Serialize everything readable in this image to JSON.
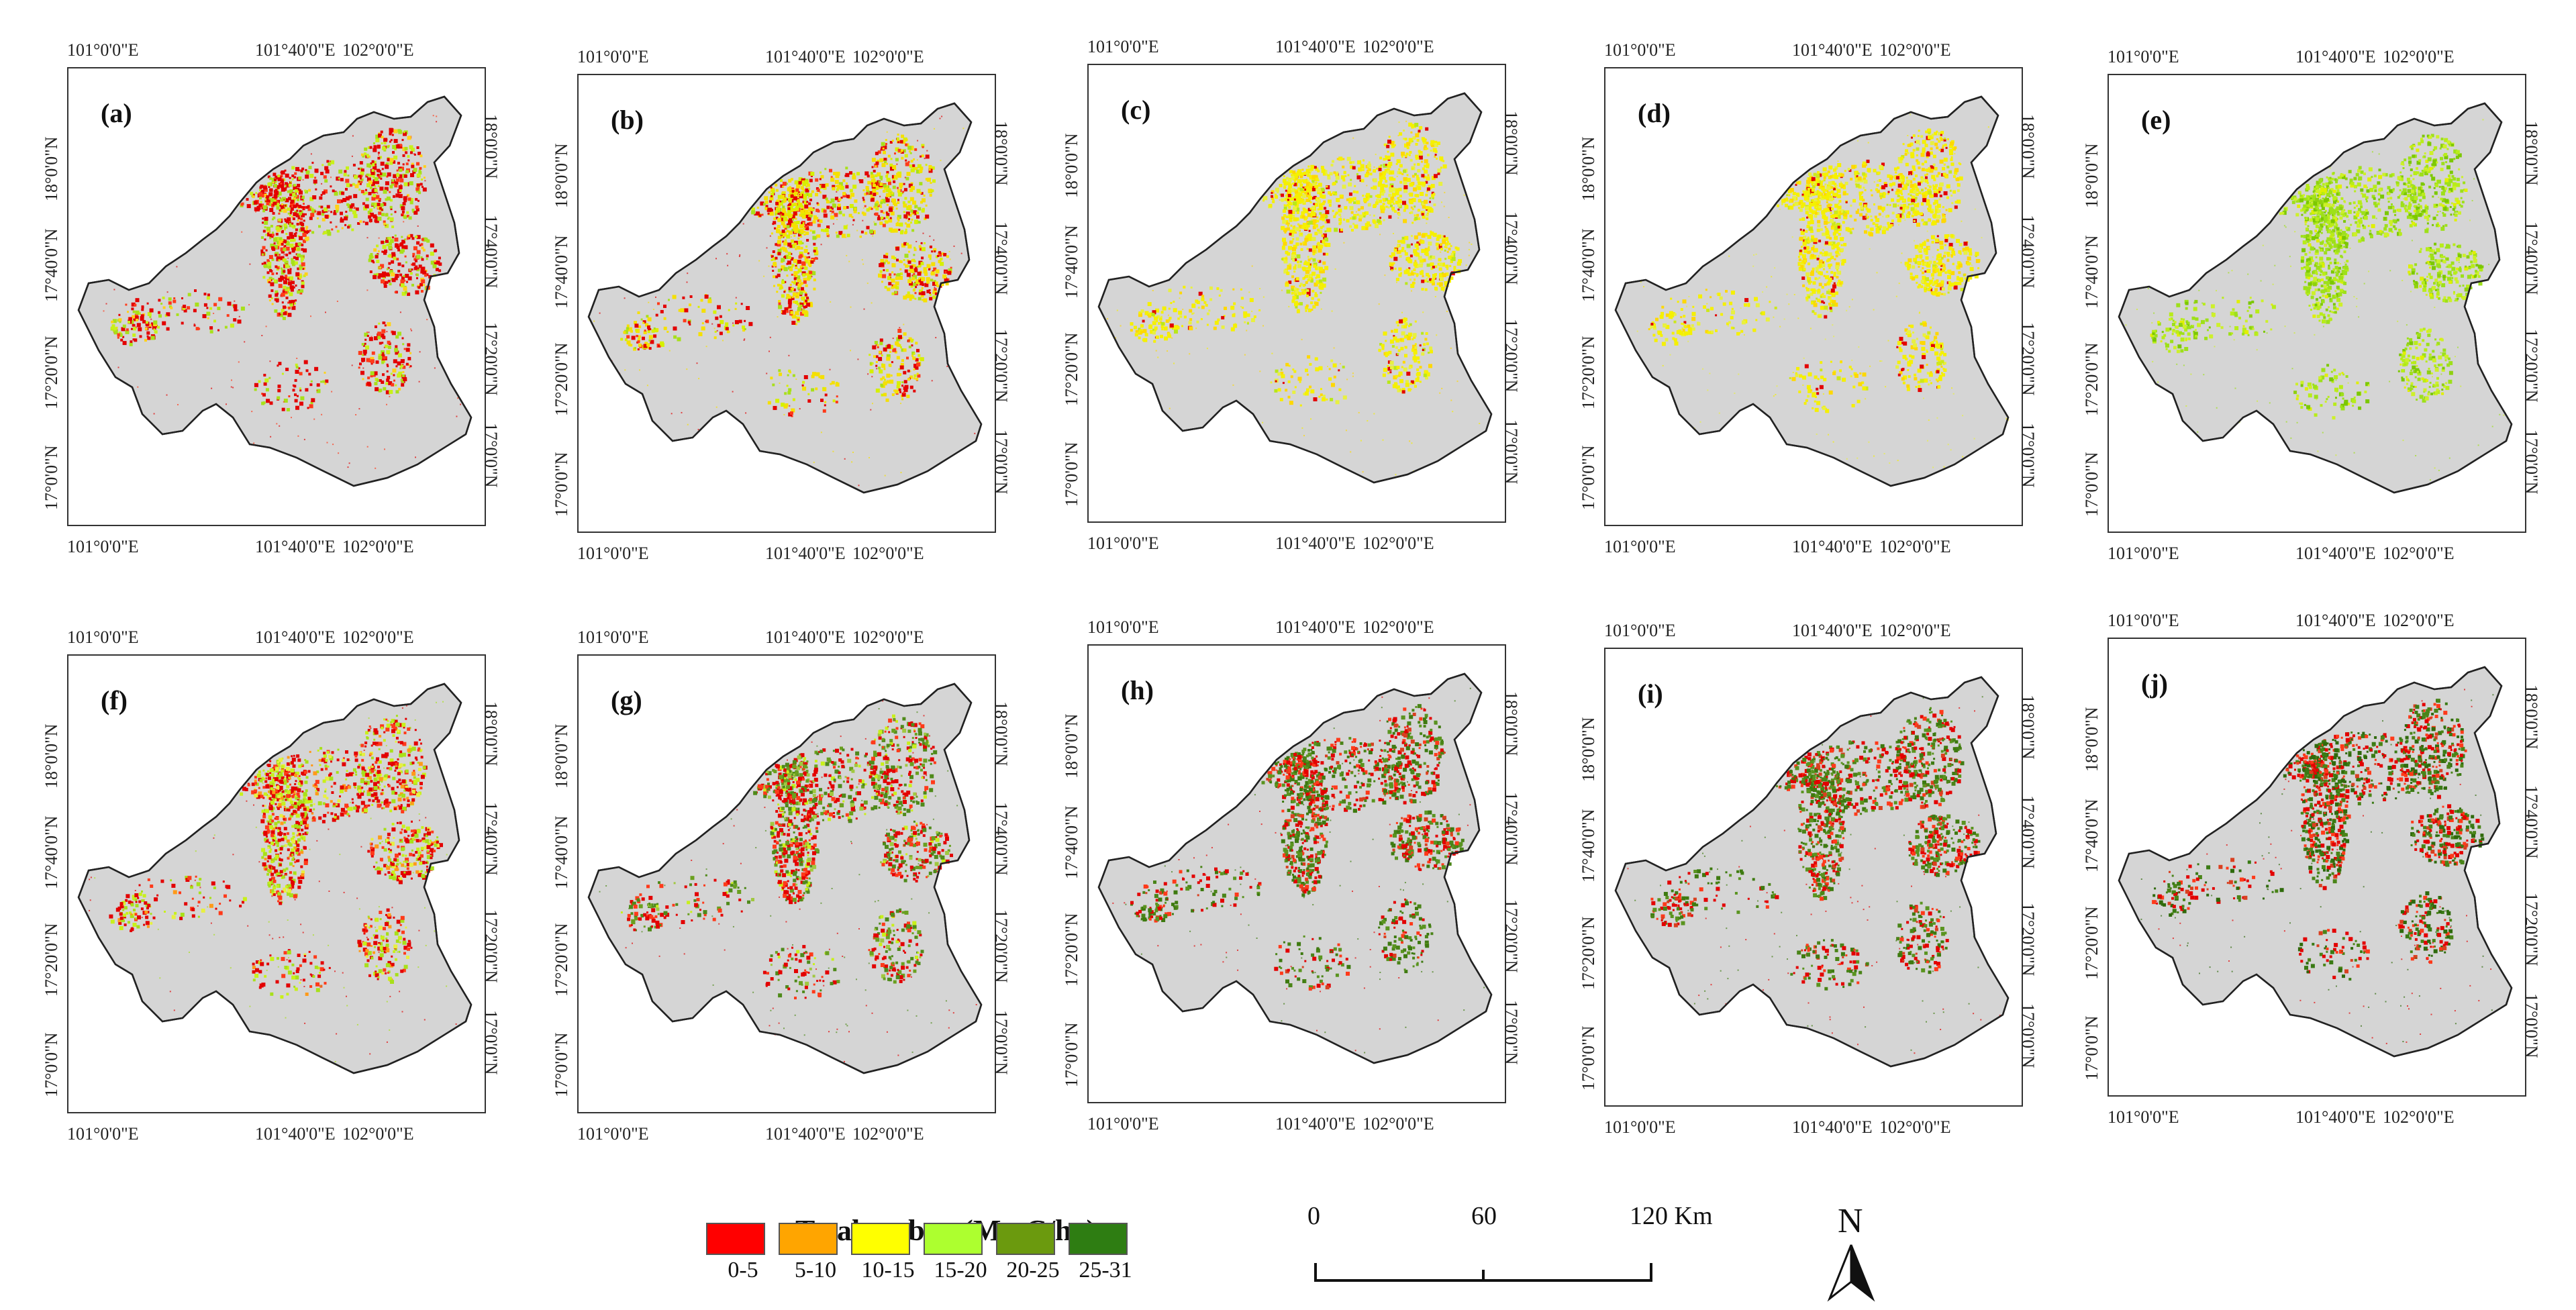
{
  "panels": [
    {
      "id": "a",
      "label": "(a)",
      "colors": [
        "#e30000",
        "#e30000",
        "#ff3a1a",
        "#a8e01a",
        "#c8f01a",
        "#ffd21a"
      ],
      "weights": [
        5,
        3,
        2,
        3,
        2,
        1
      ]
    },
    {
      "id": "b",
      "label": "(b)",
      "colors": [
        "#e30000",
        "#f5e000",
        "#f5e000",
        "#d6f000",
        "#ff3a1a",
        "#a8e01a"
      ],
      "weights": [
        3,
        3,
        2,
        2,
        1,
        1
      ]
    },
    {
      "id": "c",
      "label": "(c)",
      "colors": [
        "#f5f000",
        "#f5f000",
        "#ffd800",
        "#e8f040",
        "#e30000",
        "#b9e81a"
      ],
      "weights": [
        5,
        3,
        2,
        2,
        1,
        1
      ]
    },
    {
      "id": "d",
      "label": "(d)",
      "colors": [
        "#f5f000",
        "#f5f000",
        "#e8f040",
        "#ffd800",
        "#cde81a",
        "#e30000"
      ],
      "weights": [
        5,
        3,
        2,
        2,
        1,
        1
      ]
    },
    {
      "id": "e",
      "label": "(e)",
      "colors": [
        "#9ee01a",
        "#b8ec1a",
        "#cdf02a",
        "#7cc800",
        "#e0f000",
        "#8fd010"
      ],
      "weights": [
        4,
        3,
        2,
        2,
        1,
        1
      ]
    },
    {
      "id": "f",
      "label": "(f)",
      "colors": [
        "#e30000",
        "#ff3a1a",
        "#a8e01a",
        "#c8f01a",
        "#e8f040",
        "#ff9a1a"
      ],
      "weights": [
        5,
        2,
        3,
        2,
        1,
        1
      ]
    },
    {
      "id": "g",
      "label": "(g)",
      "colors": [
        "#e30000",
        "#ff3a1a",
        "#4f8a1a",
        "#6aa020",
        "#c8f01a",
        "#a0c840"
      ],
      "weights": [
        5,
        2,
        3,
        2,
        1,
        1
      ]
    },
    {
      "id": "h",
      "label": "(h)",
      "colors": [
        "#e30000",
        "#ff3a1a",
        "#3e7a10",
        "#5a9420",
        "#4a8418",
        "#d94020"
      ],
      "weights": [
        4,
        2,
        3,
        3,
        2,
        1
      ]
    },
    {
      "id": "i",
      "label": "(i)",
      "colors": [
        "#e30000",
        "#ff3a1a",
        "#3e7a10",
        "#5a9420",
        "#4a8418",
        "#d94020"
      ],
      "weights": [
        4,
        2,
        3,
        3,
        2,
        1
      ]
    },
    {
      "id": "j",
      "label": "(j)",
      "colors": [
        "#e30000",
        "#ff3a1a",
        "#2f6a0c",
        "#4a8418",
        "#3a7a14",
        "#d94020"
      ],
      "weights": [
        4,
        2,
        3,
        3,
        2,
        1
      ]
    }
  ],
  "axes": {
    "lon_labels": [
      "101°0'0\"E",
      "101°40'0\"E",
      "102°0'0\"E"
    ],
    "lat_labels": [
      "18°0'0\"N",
      "17°40'0\"N",
      "17°20'0\"N",
      "17°0'0\"N"
    ]
  },
  "legend": {
    "title": "Total carbon (Mg·C/ha)",
    "items": [
      {
        "label": "0-5",
        "color": "#ff0000"
      },
      {
        "label": "5-10",
        "color": "#ffa500"
      },
      {
        "label": "10-15",
        "color": "#ffff00"
      },
      {
        "label": "15-20",
        "color": "#adff2f"
      },
      {
        "label": "20-25",
        "color": "#6b9a0e"
      },
      {
        "label": "25-31",
        "color": "#2e7d12"
      }
    ]
  },
  "scale_bar": {
    "ticks": [
      "0",
      "60",
      "120 Km"
    ]
  },
  "north_arrow": {
    "label": "N"
  },
  "colors": {
    "region_fill": "#d5d5d5",
    "region_stroke": "#222222",
    "frame_border": "#333333"
  }
}
